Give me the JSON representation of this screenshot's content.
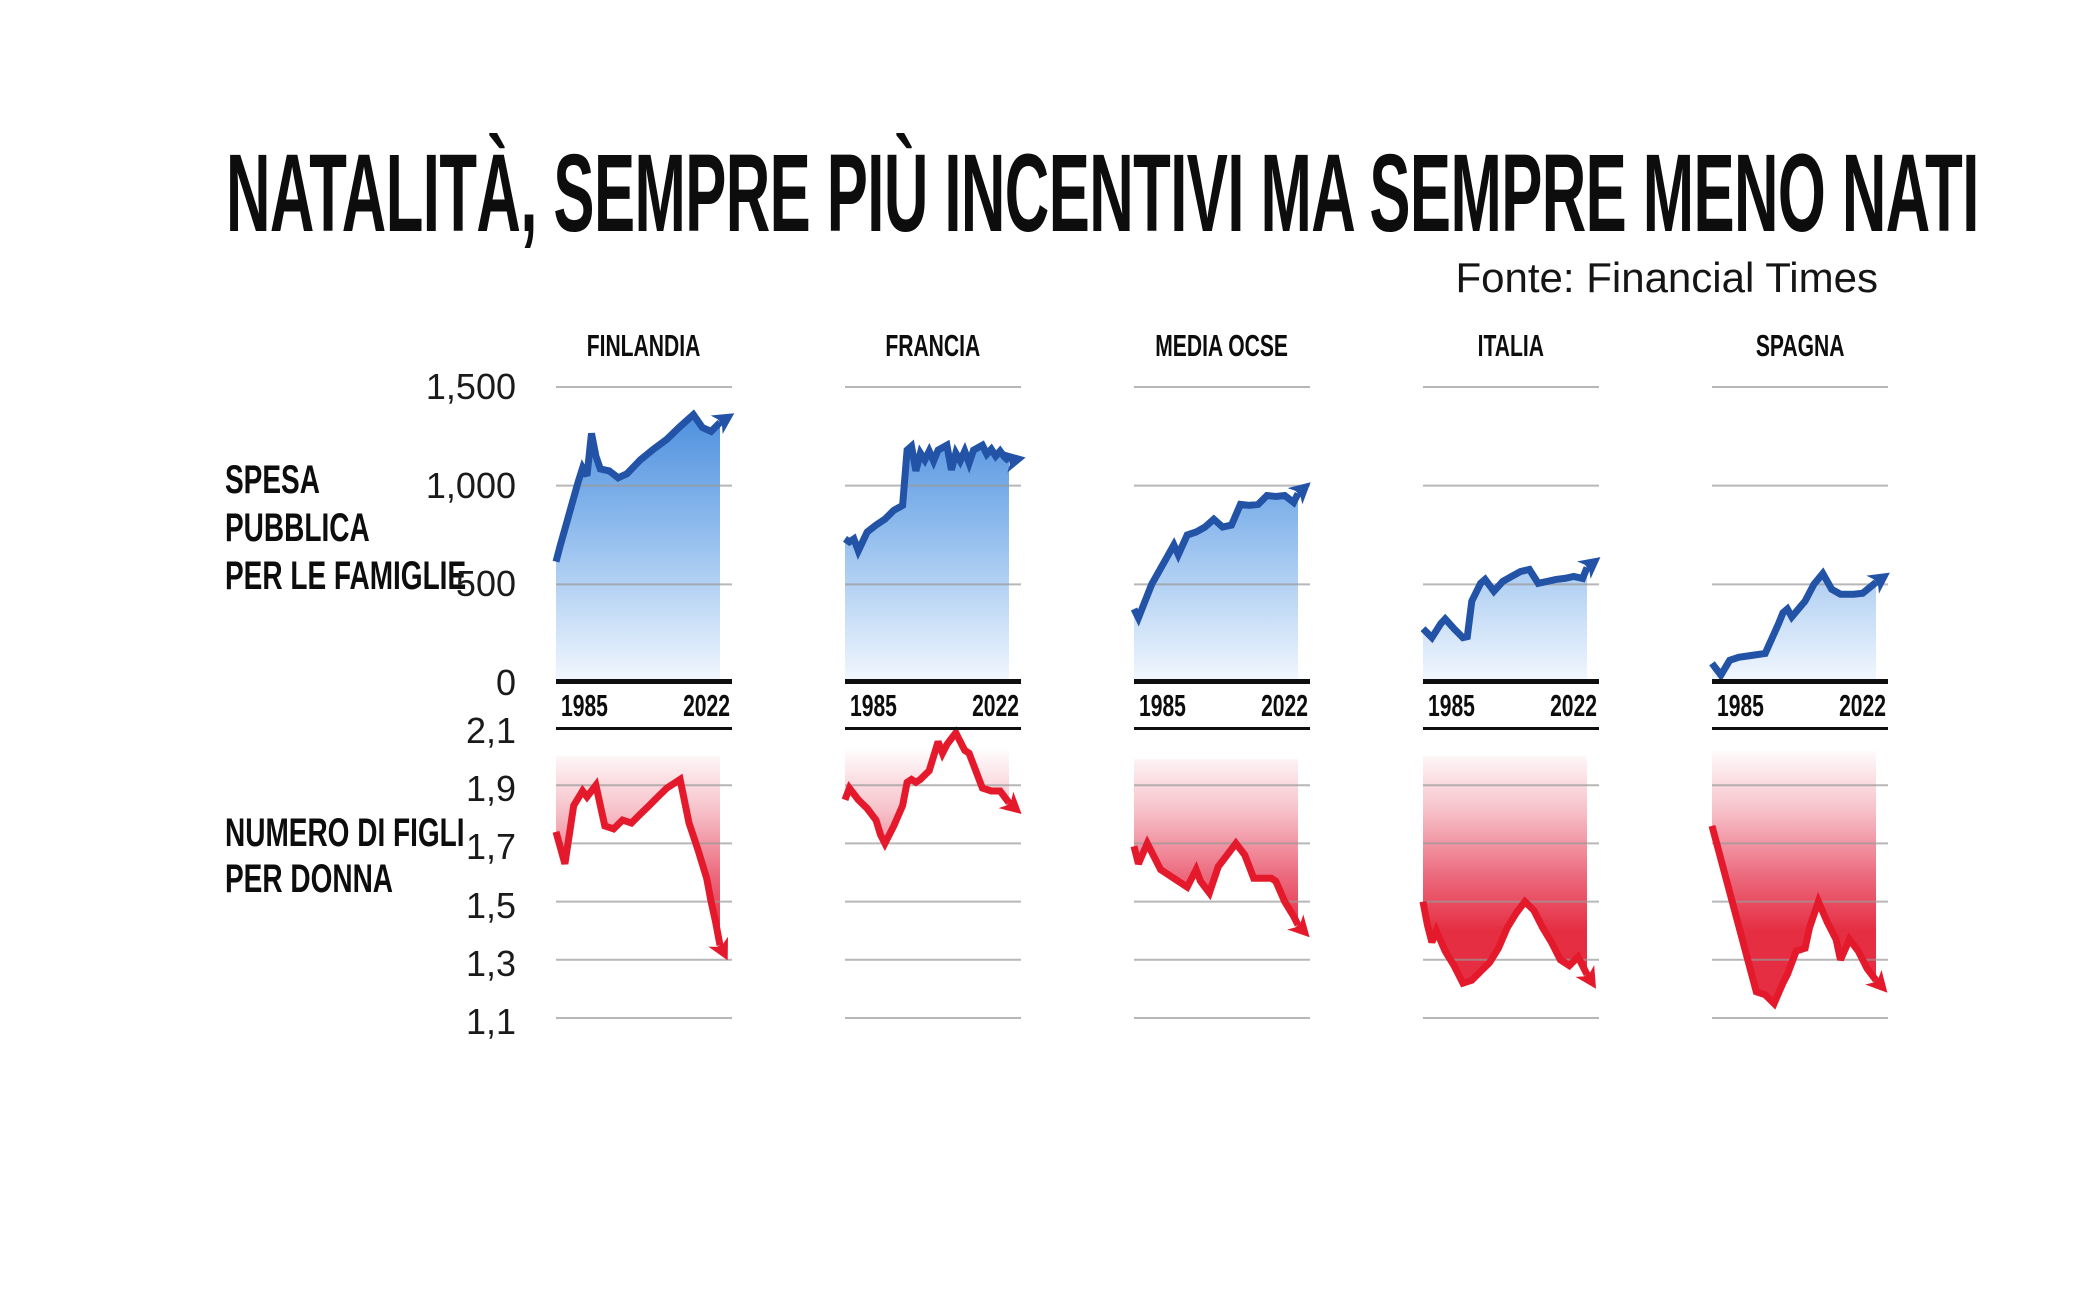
{
  "title": "NATALITÀ, SEMPRE PIÙ INCENTIVI MA SEMPRE MENO NATI",
  "source": "Fonte: Financial Times",
  "colors": {
    "background": "#ffffff",
    "spending_line": "#2253a6",
    "spending_fill_top": "#3e85da",
    "spending_fill_bottom": "#f3f8fe",
    "fertility_line": "#e41a2c",
    "fertility_fill_deep": "#e62e42",
    "gridline": "#999999",
    "axis_black": "#0f0f0f",
    "text": "#0d0d0d"
  },
  "chart_data": {
    "type": "line",
    "x_axis": {
      "range": [
        1985,
        2022
      ],
      "tick_labels": [
        "1985",
        "2022"
      ]
    },
    "spending_row": {
      "label_lines": [
        "SPESA",
        "PUBBLICA",
        "PER LE FAMIGLIE"
      ],
      "y_tick_labels": [
        "1,500",
        "1,000",
        "500",
        "0"
      ],
      "y_tick_values": [
        1500,
        1000,
        500,
        0
      ],
      "ylim": [
        0,
        1500
      ],
      "grid": true,
      "end_marker": "arrow"
    },
    "fertility_row": {
      "label_lines": [
        "NUMERO DI FIGLI",
        "PER DONNA"
      ],
      "y_tick_labels": [
        "2,1",
        "1,9",
        "1,7",
        "1,5",
        "1,3",
        "1,1"
      ],
      "y_tick_values": [
        2.1,
        1.9,
        1.7,
        1.5,
        1.3,
        1.1
      ],
      "ylim": [
        1.1,
        2.1
      ],
      "grid": true,
      "end_marker": "arrow"
    },
    "countries": [
      {
        "name": "FINLANDIA",
        "spending": {
          "series": [
            [
              1985,
              615
            ],
            [
              1986,
              700
            ],
            [
              1987,
              780
            ],
            [
              1988,
              860
            ],
            [
              1990,
              1020
            ],
            [
              1991,
              1090
            ],
            [
              1992,
              1050
            ],
            [
              1993,
              1265
            ],
            [
              1994,
              1150
            ],
            [
              1995,
              1085
            ],
            [
              1997,
              1075
            ],
            [
              1999,
              1040
            ],
            [
              2001,
              1060
            ],
            [
              2004,
              1130
            ],
            [
              2007,
              1185
            ],
            [
              2010,
              1235
            ],
            [
              2013,
              1300
            ],
            [
              2016,
              1360
            ],
            [
              2018,
              1295
            ],
            [
              2020,
              1275
            ],
            [
              2022,
              1320
            ]
          ],
          "end_arrow": "up",
          "arrow_angle_deg": -33
        },
        "fertility": {
          "series": [
            [
              1985,
              1.74
            ],
            [
              1987,
              1.63
            ],
            [
              1989,
              1.83
            ],
            [
              1991,
              1.88
            ],
            [
              1992,
              1.86
            ],
            [
              1994,
              1.9
            ],
            [
              1996,
              1.76
            ],
            [
              1998,
              1.75
            ],
            [
              2000,
              1.78
            ],
            [
              2002,
              1.77
            ],
            [
              2004,
              1.8
            ],
            [
              2006,
              1.83
            ],
            [
              2008,
              1.86
            ],
            [
              2010,
              1.89
            ],
            [
              2012,
              1.91
            ],
            [
              2013,
              1.92
            ],
            [
              2015,
              1.77
            ],
            [
              2017,
              1.68
            ],
            [
              2019,
              1.58
            ],
            [
              2020,
              1.5
            ],
            [
              2021,
              1.43
            ],
            [
              2022,
              1.35
            ]
          ],
          "end_arrow": "down",
          "arrow_angle_deg": 63,
          "band_top": 2.0
        }
      },
      {
        "name": "FRANCIA",
        "spending": {
          "series": [
            [
              1985,
              730
            ],
            [
              1986,
              715
            ],
            [
              1987,
              730
            ],
            [
              1988,
              670
            ],
            [
              1990,
              765
            ],
            [
              1992,
              800
            ],
            [
              1994,
              830
            ],
            [
              1996,
              875
            ],
            [
              1998,
              900
            ],
            [
              1999,
              1180
            ],
            [
              2000,
              1200
            ],
            [
              2001,
              1075
            ],
            [
              2002,
              1165
            ],
            [
              2003,
              1130
            ],
            [
              2004,
              1175
            ],
            [
              2005,
              1125
            ],
            [
              2006,
              1180
            ],
            [
              2008,
              1205
            ],
            [
              2009,
              1080
            ],
            [
              2010,
              1165
            ],
            [
              2011,
              1125
            ],
            [
              2012,
              1175
            ],
            [
              2013,
              1115
            ],
            [
              2014,
              1180
            ],
            [
              2016,
              1205
            ],
            [
              2017,
              1160
            ],
            [
              2018,
              1185
            ],
            [
              2019,
              1150
            ],
            [
              2020,
              1175
            ],
            [
              2021,
              1145
            ],
            [
              2022,
              1125
            ]
          ],
          "end_arrow": "right",
          "arrow_angle_deg": -12
        },
        "fertility": {
          "series": [
            [
              1985,
              1.85
            ],
            [
              1986,
              1.89
            ],
            [
              1988,
              1.85
            ],
            [
              1990,
              1.82
            ],
            [
              1992,
              1.78
            ],
            [
              1993,
              1.73
            ],
            [
              1994,
              1.7
            ],
            [
              1996,
              1.76
            ],
            [
              1998,
              1.83
            ],
            [
              1999,
              1.91
            ],
            [
              2000,
              1.92
            ],
            [
              2001,
              1.91
            ],
            [
              2002,
              1.92
            ],
            [
              2004,
              1.95
            ],
            [
              2006,
              2.05
            ],
            [
              2007,
              2.01
            ],
            [
              2008,
              2.04
            ],
            [
              2010,
              2.08
            ],
            [
              2012,
              2.02
            ],
            [
              2013,
              2.01
            ],
            [
              2014,
              1.97
            ],
            [
              2016,
              1.89
            ],
            [
              2018,
              1.88
            ],
            [
              2020,
              1.88
            ],
            [
              2022,
              1.84
            ]
          ],
          "end_arrow": "down",
          "arrow_angle_deg": 42,
          "band_top": 2.09
        }
      },
      {
        "name": "MEDIA OCSE",
        "spending": {
          "series": [
            [
              1985,
              375
            ],
            [
              1986,
              330
            ],
            [
              1989,
              500
            ],
            [
              1992,
              620
            ],
            [
              1994,
              700
            ],
            [
              1995,
              650
            ],
            [
              1997,
              750
            ],
            [
              1999,
              765
            ],
            [
              2001,
              790
            ],
            [
              2003,
              830
            ],
            [
              2005,
              790
            ],
            [
              2007,
              800
            ],
            [
              2009,
              905
            ],
            [
              2011,
              900
            ],
            [
              2013,
              905
            ],
            [
              2015,
              950
            ],
            [
              2017,
              945
            ],
            [
              2019,
              950
            ],
            [
              2021,
              915
            ],
            [
              2022,
              960
            ]
          ],
          "end_arrow": "up",
          "arrow_angle_deg": -42
        },
        "fertility": {
          "series": [
            [
              1985,
              1.69
            ],
            [
              1986,
              1.63
            ],
            [
              1988,
              1.7
            ],
            [
              1991,
              1.61
            ],
            [
              1994,
              1.58
            ],
            [
              1997,
              1.55
            ],
            [
              1999,
              1.61
            ],
            [
              2000,
              1.57
            ],
            [
              2002,
              1.53
            ],
            [
              2004,
              1.62
            ],
            [
              2006,
              1.66
            ],
            [
              2008,
              1.7
            ],
            [
              2010,
              1.66
            ],
            [
              2012,
              1.58
            ],
            [
              2014,
              1.58
            ],
            [
              2016,
              1.58
            ],
            [
              2017,
              1.57
            ],
            [
              2019,
              1.5
            ],
            [
              2021,
              1.45
            ],
            [
              2022,
              1.42
            ]
          ],
          "end_arrow": "down",
          "arrow_angle_deg": 47,
          "band_top": 1.99
        }
      },
      {
        "name": "ITALIA",
        "spending": {
          "series": [
            [
              1985,
              275
            ],
            [
              1987,
              230
            ],
            [
              1989,
              300
            ],
            [
              1990,
              325
            ],
            [
              1992,
              275
            ],
            [
              1994,
              230
            ],
            [
              1995,
              235
            ],
            [
              1996,
              415
            ],
            [
              1998,
              505
            ],
            [
              1999,
              525
            ],
            [
              2001,
              465
            ],
            [
              2003,
              515
            ],
            [
              2005,
              540
            ],
            [
              2007,
              565
            ],
            [
              2009,
              575
            ],
            [
              2011,
              505
            ],
            [
              2013,
              515
            ],
            [
              2015,
              525
            ],
            [
              2017,
              530
            ],
            [
              2019,
              540
            ],
            [
              2021,
              530
            ],
            [
              2022,
              585
            ]
          ],
          "end_arrow": "up",
          "arrow_angle_deg": -38
        },
        "fertility": {
          "series": [
            [
              1985,
              1.5
            ],
            [
              1986,
              1.42
            ],
            [
              1987,
              1.36
            ],
            [
              1988,
              1.4
            ],
            [
              1990,
              1.33
            ],
            [
              1992,
              1.28
            ],
            [
              1994,
              1.22
            ],
            [
              1996,
              1.23
            ],
            [
              1998,
              1.26
            ],
            [
              2000,
              1.29
            ],
            [
              2002,
              1.34
            ],
            [
              2004,
              1.41
            ],
            [
              2006,
              1.46
            ],
            [
              2008,
              1.5
            ],
            [
              2010,
              1.47
            ],
            [
              2012,
              1.41
            ],
            [
              2014,
              1.36
            ],
            [
              2016,
              1.3
            ],
            [
              2018,
              1.28
            ],
            [
              2020,
              1.31
            ],
            [
              2022,
              1.25
            ]
          ],
          "end_arrow": "down",
          "arrow_angle_deg": 58,
          "band_top": 2.0
        }
      },
      {
        "name": "SPAGNA",
        "spending": {
          "series": [
            [
              1985,
              100
            ],
            [
              1987,
              40
            ],
            [
              1989,
              115
            ],
            [
              1991,
              130
            ],
            [
              1994,
              140
            ],
            [
              1997,
              150
            ],
            [
              2000,
              300
            ],
            [
              2001,
              355
            ],
            [
              2002,
              375
            ],
            [
              2003,
              335
            ],
            [
              2006,
              415
            ],
            [
              2008,
              500
            ],
            [
              2010,
              555
            ],
            [
              2012,
              475
            ],
            [
              2014,
              450
            ],
            [
              2017,
              450
            ],
            [
              2019,
              455
            ],
            [
              2022,
              510
            ]
          ],
          "end_arrow": "up",
          "arrow_angle_deg": -35
        },
        "fertility": {
          "series": [
            [
              1985,
              1.76
            ],
            [
              1995,
              1.19
            ],
            [
              1997,
              1.18
            ],
            [
              1999,
              1.15
            ],
            [
              2001,
              1.22
            ],
            [
              2002,
              1.25
            ],
            [
              2004,
              1.33
            ],
            [
              2006,
              1.34
            ],
            [
              2007,
              1.41
            ],
            [
              2009,
              1.5
            ],
            [
              2011,
              1.43
            ],
            [
              2013,
              1.37
            ],
            [
              2014,
              1.3
            ],
            [
              2016,
              1.37
            ],
            [
              2018,
              1.33
            ],
            [
              2020,
              1.27
            ],
            [
              2022,
              1.23
            ]
          ],
          "end_arrow": "down",
          "arrow_angle_deg": 48,
          "band_top": 2.02
        }
      }
    ]
  }
}
